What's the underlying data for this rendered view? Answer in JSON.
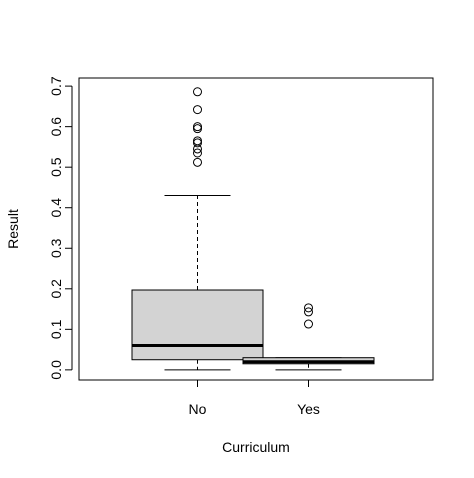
{
  "chart_data": {
    "type": "boxplot",
    "title": "",
    "xlabel": "Curriculum",
    "ylabel": "Result",
    "ylim": [
      -0.025,
      0.72
    ],
    "yticks": [
      0.0,
      0.1,
      0.2,
      0.3,
      0.4,
      0.5,
      0.6,
      0.7
    ],
    "ytick_labels": [
      "0.0",
      "0.1",
      "0.2",
      "0.3",
      "0.4",
      "0.5",
      "0.6",
      "0.7"
    ],
    "categories": [
      "No",
      "Yes"
    ],
    "box_fill": "#d3d3d3",
    "series": [
      {
        "category": "No",
        "whisker_low": 0.0,
        "q1": 0.025,
        "median": 0.06,
        "q3": 0.197,
        "whisker_high": 0.43,
        "outliers": [
          0.512,
          0.535,
          0.545,
          0.56,
          0.565,
          0.595,
          0.6,
          0.642,
          0.686
        ]
      },
      {
        "category": "Yes",
        "whisker_low": 0.0,
        "q1": 0.015,
        "median": 0.02,
        "q3": 0.03,
        "whisker_high": 0.03,
        "outliers": [
          0.113,
          0.143,
          0.153
        ]
      }
    ]
  }
}
